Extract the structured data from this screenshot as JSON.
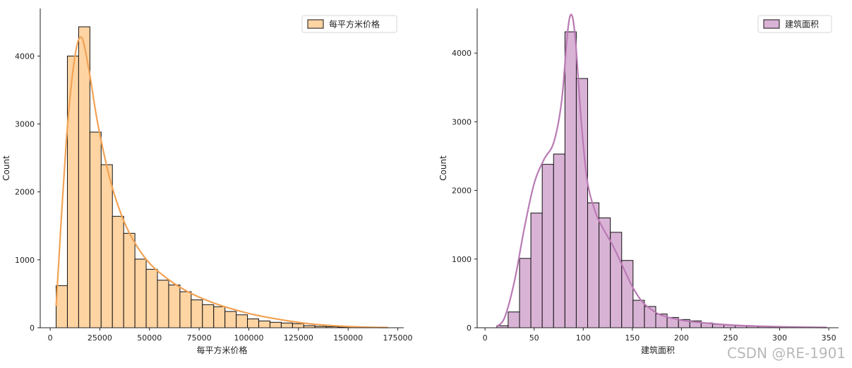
{
  "watermark": "CSDN @RE-1901",
  "chart_data": [
    {
      "type": "bar",
      "subtype": "histogram_with_kde",
      "xlabel": "每平方米价格",
      "ylabel": "Count",
      "legend": "每平方米价格",
      "legend_position": "top-right",
      "color": "#ffd4a3",
      "edge_color": "#111111",
      "kde_color": "#f2a254",
      "xlim": [
        -5000,
        178000
      ],
      "ylim": [
        0,
        4700
      ],
      "xticks": [
        0,
        25000,
        50000,
        75000,
        100000,
        125000,
        150000,
        175000
      ],
      "yticks": [
        0,
        1000,
        2000,
        3000,
        4000
      ],
      "bin_width": 5666,
      "bin_starts": [
        3000,
        8666,
        14332,
        19998,
        25664,
        31330,
        36996,
        42662,
        48328,
        53994,
        59660,
        65326,
        70992,
        76658,
        82324,
        87990,
        93656,
        99322,
        104988,
        110654,
        116320,
        121986,
        127652,
        133318,
        138984,
        144650,
        150316,
        155982,
        161648
      ],
      "values": [
        620,
        4000,
        4430,
        2880,
        2400,
        1640,
        1390,
        1010,
        860,
        700,
        630,
        530,
        410,
        340,
        310,
        240,
        190,
        130,
        100,
        80,
        70,
        60,
        30,
        20,
        15,
        10,
        8,
        6,
        4
      ],
      "kde_x": [
        3000,
        8000,
        12000,
        15500,
        19000,
        24000,
        30000,
        36000,
        42000,
        50000,
        60000,
        70000,
        80000,
        90000,
        100000,
        110000,
        120000,
        130000,
        140000,
        150000,
        160000,
        170000
      ],
      "kde_y": [
        320,
        2700,
        3900,
        4280,
        3880,
        3000,
        2200,
        1650,
        1280,
        950,
        700,
        520,
        390,
        290,
        210,
        150,
        100,
        60,
        35,
        18,
        8,
        3
      ]
    },
    {
      "type": "bar",
      "subtype": "histogram_with_kde",
      "xlabel": "建筑面积",
      "ylabel": "Count",
      "legend": "建筑面积",
      "legend_position": "top-right",
      "color": "#d9b3d6",
      "edge_color": "#111111",
      "kde_color": "#b97ab3",
      "xlim": [
        -8,
        360
      ],
      "ylim": [
        0,
        4650
      ],
      "xticks": [
        0,
        50,
        100,
        150,
        200,
        250,
        300,
        350
      ],
      "yticks": [
        0,
        1000,
        2000,
        3000,
        4000
      ],
      "bin_width": 11.56,
      "bin_starts": [
        12,
        23.56,
        35.12,
        46.68,
        58.24,
        69.8,
        81.36,
        92.92,
        104.48,
        116.04,
        127.6,
        139.16,
        150.72,
        162.28,
        173.84,
        185.4,
        196.96,
        208.52,
        220.08,
        231.64,
        243.2,
        254.76,
        266.32,
        277.88,
        289.44,
        301,
        312.56,
        324.12,
        335.68
      ],
      "values": [
        30,
        230,
        1010,
        1670,
        2380,
        2530,
        4310,
        3630,
        1820,
        1600,
        1390,
        980,
        400,
        310,
        200,
        150,
        120,
        100,
        70,
        50,
        40,
        30,
        20,
        15,
        12,
        8,
        6,
        4,
        3
      ],
      "kde_x": [
        12,
        20,
        30,
        40,
        50,
        60,
        70,
        78,
        84,
        88,
        92,
        98,
        104,
        112,
        120,
        130,
        140,
        150,
        160,
        170,
        180,
        200,
        220,
        250,
        280,
        310,
        348
      ],
      "kde_y": [
        20,
        150,
        680,
        1450,
        2100,
        2450,
        2700,
        3300,
        4300,
        4560,
        4200,
        3000,
        2150,
        1700,
        1450,
        1200,
        900,
        600,
        380,
        260,
        180,
        110,
        75,
        40,
        22,
        12,
        4
      ]
    }
  ]
}
